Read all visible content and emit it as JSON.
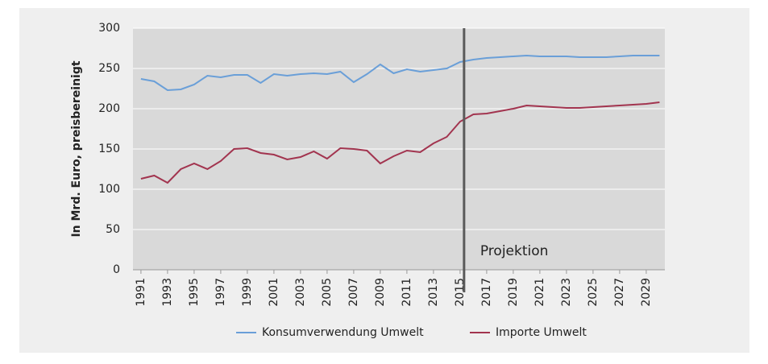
{
  "chart_data": {
    "type": "line",
    "y_label": "In Mrd. Euro, preisbereinigt",
    "x": [
      1991,
      1992,
      1993,
      1994,
      1995,
      1996,
      1997,
      1998,
      1999,
      2000,
      2001,
      2002,
      2003,
      2004,
      2005,
      2006,
      2007,
      2008,
      2009,
      2010,
      2011,
      2012,
      2013,
      2014,
      2015,
      2016,
      2017,
      2018,
      2019,
      2020,
      2021,
      2022,
      2023,
      2024,
      2025,
      2026,
      2027,
      2028,
      2029,
      2030
    ],
    "xlim": [
      1990.4,
      2030.4
    ],
    "xticks": [
      1991,
      1993,
      1995,
      1997,
      1999,
      2001,
      2003,
      2005,
      2007,
      2009,
      2011,
      2013,
      2015,
      2017,
      2019,
      2021,
      2023,
      2025,
      2027,
      2029
    ],
    "ylim": [
      0,
      300
    ],
    "yticks": [
      0,
      50,
      100,
      150,
      200,
      250,
      300
    ],
    "grid": true,
    "series": [
      {
        "name": "Konsumverwendung Umwelt",
        "color": "#6a9fd8",
        "values": [
          237,
          234,
          223,
          224,
          230,
          241,
          239,
          242,
          242,
          232,
          243,
          241,
          243,
          244,
          243,
          246,
          233,
          243,
          255,
          244,
          249,
          246,
          248,
          250,
          258,
          261,
          263,
          264,
          265,
          266,
          265,
          265,
          265,
          264,
          264,
          264,
          265,
          266,
          266,
          266
        ]
      },
      {
        "name": "Importe  Umwelt",
        "color": "#a2344f",
        "values": [
          113,
          117,
          108,
          125,
          132,
          125,
          135,
          150,
          151,
          145,
          143,
          137,
          140,
          147,
          138,
          151,
          150,
          148,
          132,
          141,
          148,
          146,
          157,
          165,
          184,
          193,
          194,
          197,
          200,
          204,
          203,
          202,
          201,
          201,
          202,
          203,
          204,
          205,
          206,
          208
        ]
      }
    ],
    "annotation": {
      "text": "Projektion",
      "x": 2015.3
    },
    "legend": "bottom"
  }
}
